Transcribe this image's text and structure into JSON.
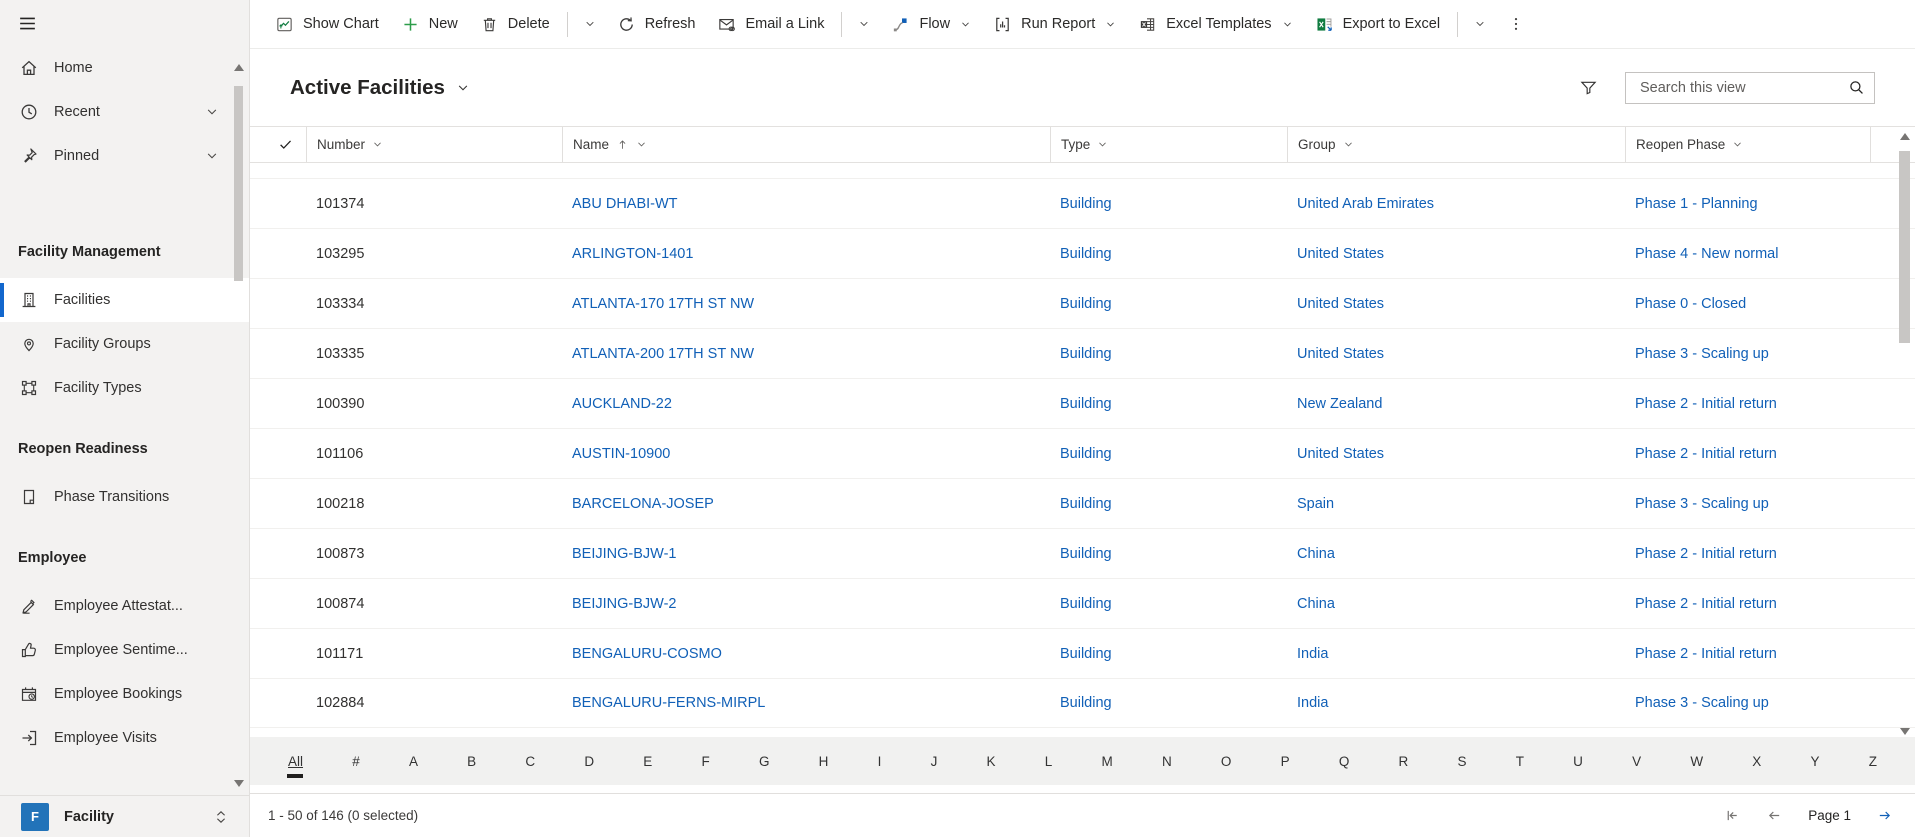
{
  "colors": {
    "link_blue": "#1160b7",
    "nav_indicator": "#1267cd",
    "app_badge": "#2273b9",
    "excel_green": "#107c41",
    "plus_green": "#2d9d4a"
  },
  "sidebar": {
    "top_items": [
      {
        "name": "home",
        "label": "Home",
        "icon": "home-icon",
        "chevron": false
      },
      {
        "name": "recent",
        "label": "Recent",
        "icon": "clock-icon",
        "chevron": true
      },
      {
        "name": "pinned",
        "label": "Pinned",
        "icon": "pin-icon",
        "chevron": true
      }
    ],
    "groups": [
      {
        "header": "Facility Management",
        "items": [
          {
            "name": "facilities",
            "label": "Facilities",
            "icon": "building-icon",
            "selected": true
          },
          {
            "name": "facility-groups",
            "label": "Facility Groups",
            "icon": "map-pin-icon"
          },
          {
            "name": "facility-types",
            "label": "Facility Types",
            "icon": "nodes-icon"
          }
        ]
      },
      {
        "header": "Reopen Readiness",
        "items": [
          {
            "name": "phase-transitions",
            "label": "Phase Transitions",
            "icon": "page-icon"
          }
        ]
      },
      {
        "header": "Employee",
        "items": [
          {
            "name": "employee-attestations",
            "label": "Employee Attestat...",
            "icon": "pencil-icon"
          },
          {
            "name": "employee-sentiment",
            "label": "Employee Sentime...",
            "icon": "thumbs-up-icon"
          },
          {
            "name": "employee-bookings",
            "label": "Employee Bookings",
            "icon": "calendar-clock-icon"
          },
          {
            "name": "employee-visits",
            "label": "Employee Visits",
            "icon": "sign-in-icon"
          }
        ]
      }
    ],
    "area_switcher": {
      "initial": "F",
      "label": "Facility"
    }
  },
  "toolbar": {
    "items": [
      {
        "type": "button",
        "icon": "chart-icon",
        "label": "Show Chart"
      },
      {
        "type": "button",
        "icon": "plus-icon",
        "label": "New"
      },
      {
        "type": "button",
        "icon": "trash-icon",
        "label": "Delete"
      },
      {
        "type": "divider"
      },
      {
        "type": "chevron"
      },
      {
        "type": "button",
        "icon": "refresh-icon",
        "label": "Refresh"
      },
      {
        "type": "button",
        "icon": "email-icon",
        "label": "Email a Link"
      },
      {
        "type": "divider"
      },
      {
        "type": "chevron"
      },
      {
        "type": "button",
        "icon": "flow-icon",
        "label": "Flow",
        "chevron": true
      },
      {
        "type": "button",
        "icon": "report-icon",
        "label": "Run Report",
        "chevron": true
      },
      {
        "type": "button",
        "icon": "excel-template-icon",
        "label": "Excel Templates",
        "chevron": true
      },
      {
        "type": "button",
        "icon": "export-excel-icon",
        "label": "Export to Excel"
      },
      {
        "type": "divider"
      },
      {
        "type": "chevron"
      },
      {
        "type": "more"
      }
    ]
  },
  "view": {
    "title": "Active Facilities",
    "search_placeholder": "Search this view"
  },
  "grid": {
    "columns": [
      {
        "key": "number",
        "label": "Number"
      },
      {
        "key": "name",
        "label": "Name",
        "sorted": "asc"
      },
      {
        "key": "type",
        "label": "Type"
      },
      {
        "key": "group",
        "label": "Group"
      },
      {
        "key": "phase",
        "label": "Reopen Phase"
      }
    ],
    "rows": [
      {
        "number": "101374",
        "name": "ABU DHABI-WT",
        "type": "Building",
        "group": "United Arab Emirates",
        "phase": "Phase 1 - Planning"
      },
      {
        "number": "103295",
        "name": "ARLINGTON-1401",
        "type": "Building",
        "group": "United States",
        "phase": "Phase 4 - New normal"
      },
      {
        "number": "103334",
        "name": "ATLANTA-170 17TH ST NW",
        "type": "Building",
        "group": "United States",
        "phase": "Phase 0 - Closed"
      },
      {
        "number": "103335",
        "name": "ATLANTA-200 17TH ST NW",
        "type": "Building",
        "group": "United States",
        "phase": "Phase 3 - Scaling up"
      },
      {
        "number": "100390",
        "name": "AUCKLAND-22",
        "type": "Building",
        "group": "New Zealand",
        "phase": "Phase 2 - Initial return"
      },
      {
        "number": "101106",
        "name": "AUSTIN-10900",
        "type": "Building",
        "group": "United States",
        "phase": "Phase 2 - Initial return"
      },
      {
        "number": "100218",
        "name": "BARCELONA-JOSEP",
        "type": "Building",
        "group": "Spain",
        "phase": "Phase 3 - Scaling up"
      },
      {
        "number": "100873",
        "name": "BEIJING-BJW-1",
        "type": "Building",
        "group": "China",
        "phase": "Phase 2 - Initial return"
      },
      {
        "number": "100874",
        "name": "BEIJING-BJW-2",
        "type": "Building",
        "group": "China",
        "phase": "Phase 2 - Initial return"
      },
      {
        "number": "101171",
        "name": "BENGALURU-COSMO",
        "type": "Building",
        "group": "India",
        "phase": "Phase 2 - Initial return"
      },
      {
        "number": "102884",
        "name": "BENGALURU-FERNS-MIRPL",
        "type": "Building",
        "group": "India",
        "phase": "Phase 3 - Scaling up"
      }
    ]
  },
  "jumpbar": {
    "active": "All",
    "items": [
      "All",
      "#",
      "A",
      "B",
      "C",
      "D",
      "E",
      "F",
      "G",
      "H",
      "I",
      "J",
      "K",
      "L",
      "M",
      "N",
      "O",
      "P",
      "Q",
      "R",
      "S",
      "T",
      "U",
      "V",
      "W",
      "X",
      "Y",
      "Z"
    ]
  },
  "statusbar": {
    "record_count": "1 - 50 of 146 (0 selected)",
    "page_label": "Page 1"
  }
}
